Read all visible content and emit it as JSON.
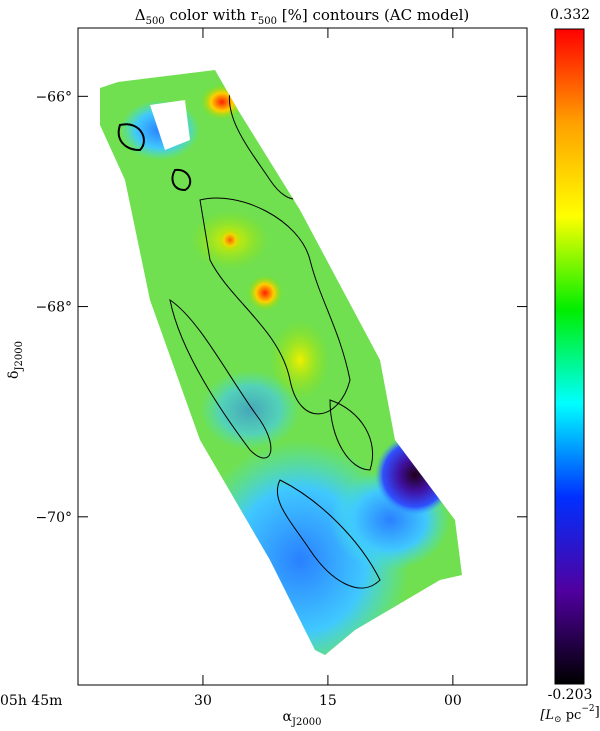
{
  "chart_data": {
    "type": "map",
    "title": [
      "Δ",
      "500",
      " color with r",
      "500",
      " [%] contours (AC model)"
    ],
    "xlabel": [
      "α",
      "J2000"
    ],
    "ylabel": [
      "δ",
      "J2000"
    ],
    "xlim": [
      45,
      -8.9
    ],
    "xticks": [
      {
        "value": 45,
        "label": "05h 45m"
      },
      30,
      15,
      {
        "value": 0,
        "label": "00"
      }
    ],
    "ylim": [
      -71.6,
      -65.35
    ],
    "yticks": [
      {
        "value": -66,
        "label": "−66°"
      },
      {
        "value": -68,
        "label": "−68°"
      },
      {
        "value": -70,
        "label": "−70°"
      }
    ],
    "colorbar": {
      "lim": [
        -0.203,
        0.332
      ],
      "ticks": [
        0.332,
        -0.203
      ],
      "label": [
        "[L",
        "⊙",
        " pc",
        "−2",
        "]"
      ],
      "colors": [
        "#ff0000",
        "#ffa000",
        "#ffff00",
        "#00ee00",
        "#00ffff",
        "#0030ff",
        "#5000a0",
        "#000000"
      ]
    }
  }
}
